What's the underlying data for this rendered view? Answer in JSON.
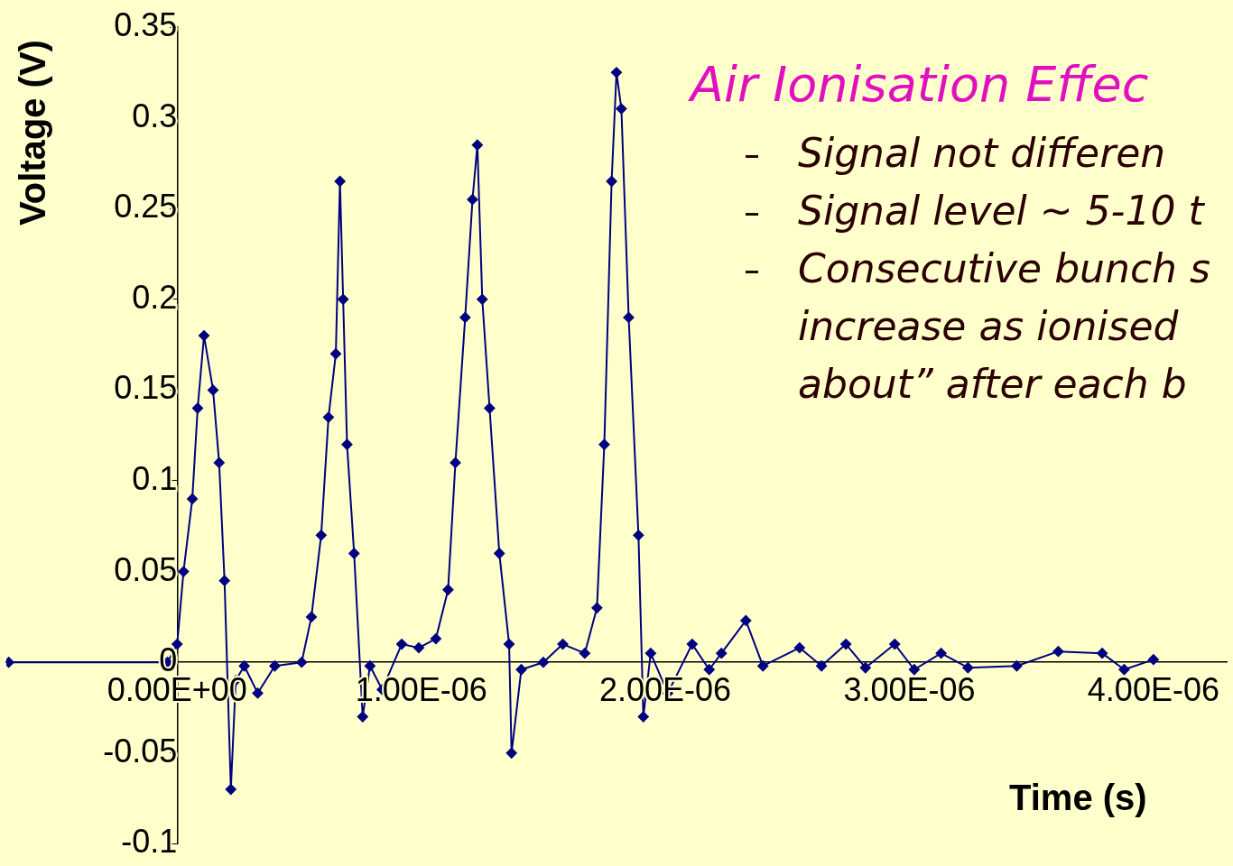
{
  "chart_data": {
    "type": "line",
    "title": "Air Ionisation Effec",
    "xlabel": "Time (s)",
    "ylabel": "Voltage (V)",
    "annotations": [
      "Signal not differen",
      "Signal level ~ 5-10 t",
      "Consecutive bunch s\nincrease as ionised\nabout” after each b"
    ],
    "xlim": [
      -7e-07,
      4.3e-06
    ],
    "xticks": [
      {
        "value": 0,
        "label": "0.00E+00"
      },
      {
        "value": 1e-06,
        "label": "1.00E-06"
      },
      {
        "value": 2e-06,
        "label": "2.00E-06"
      },
      {
        "value": 3e-06,
        "label": "3.00E-06"
      },
      {
        "value": 4e-06,
        "label": "4.00E-06"
      }
    ],
    "ylim": [
      -0.1,
      0.35
    ],
    "yticks": [
      -0.1,
      -0.05,
      0,
      0.05,
      0.1,
      0.15,
      0.2,
      0.25,
      0.3,
      0.35
    ],
    "grid": false,
    "legend": false,
    "marker": "diamond",
    "line_style": "solid",
    "x": [
      -6.9e-07,
      -4e-08,
      0,
      2.6e-08,
      6.2e-08,
      8.4e-08,
      1.1e-07,
      1.47e-07,
      1.72e-07,
      1.94e-07,
      2.2e-07,
      2.4e-07,
      2.75e-07,
      3.3e-07,
      4e-07,
      5.1e-07,
      5.5e-07,
      5.9e-07,
      6.2e-07,
      6.5e-07,
      6.67e-07,
      6.8e-07,
      6.96e-07,
      7.25e-07,
      7.6e-07,
      7.9e-07,
      8.4e-07,
      9.2e-07,
      9.9e-07,
      1.06e-06,
      1.11e-06,
      1.14e-06,
      1.18e-06,
      1.21e-06,
      1.23e-06,
      1.25e-06,
      1.28e-06,
      1.32e-06,
      1.36e-06,
      1.37e-06,
      1.41e-06,
      1.5e-06,
      1.58e-06,
      1.67e-06,
      1.72e-06,
      1.75e-06,
      1.78e-06,
      1.8e-06,
      1.82e-06,
      1.85e-06,
      1.89e-06,
      1.91e-06,
      1.94e-06,
      2.01e-06,
      2.11e-06,
      2.18e-06,
      2.23e-06,
      2.33e-06,
      2.4e-06,
      2.55e-06,
      2.64e-06,
      2.74e-06,
      2.82e-06,
      2.94e-06,
      3.02e-06,
      3.13e-06,
      3.24e-06,
      3.44e-06,
      3.61e-06,
      3.79e-06,
      3.88e-06,
      4e-06
    ],
    "series": [
      {
        "color": "#000080",
        "values": [
          0,
          0,
          0.01,
          0.05,
          0.09,
          0.14,
          0.18,
          0.15,
          0.11,
          0.045,
          -0.07,
          -0.01,
          -0.002,
          -0.017,
          -0.002,
          0,
          0.025,
          0.07,
          0.135,
          0.17,
          0.265,
          0.2,
          0.12,
          0.06,
          -0.03,
          -0.002,
          -0.015,
          0.01,
          0.008,
          0.013,
          0.04,
          0.11,
          0.19,
          0.255,
          0.285,
          0.2,
          0.14,
          0.06,
          0.01,
          -0.05,
          -0.004,
          0,
          0.01,
          0.005,
          0.03,
          0.12,
          0.265,
          0.325,
          0.305,
          0.19,
          0.07,
          -0.03,
          0.005,
          -0.017,
          0.01,
          -0.004,
          0.005,
          0.023,
          -0.002,
          0.008,
          -0.002,
          0.01,
          -0.003,
          0.01,
          -0.004,
          0.005,
          -0.003,
          -0.002,
          0.006,
          0.005,
          -0.004,
          0.0015
        ]
      }
    ]
  }
}
